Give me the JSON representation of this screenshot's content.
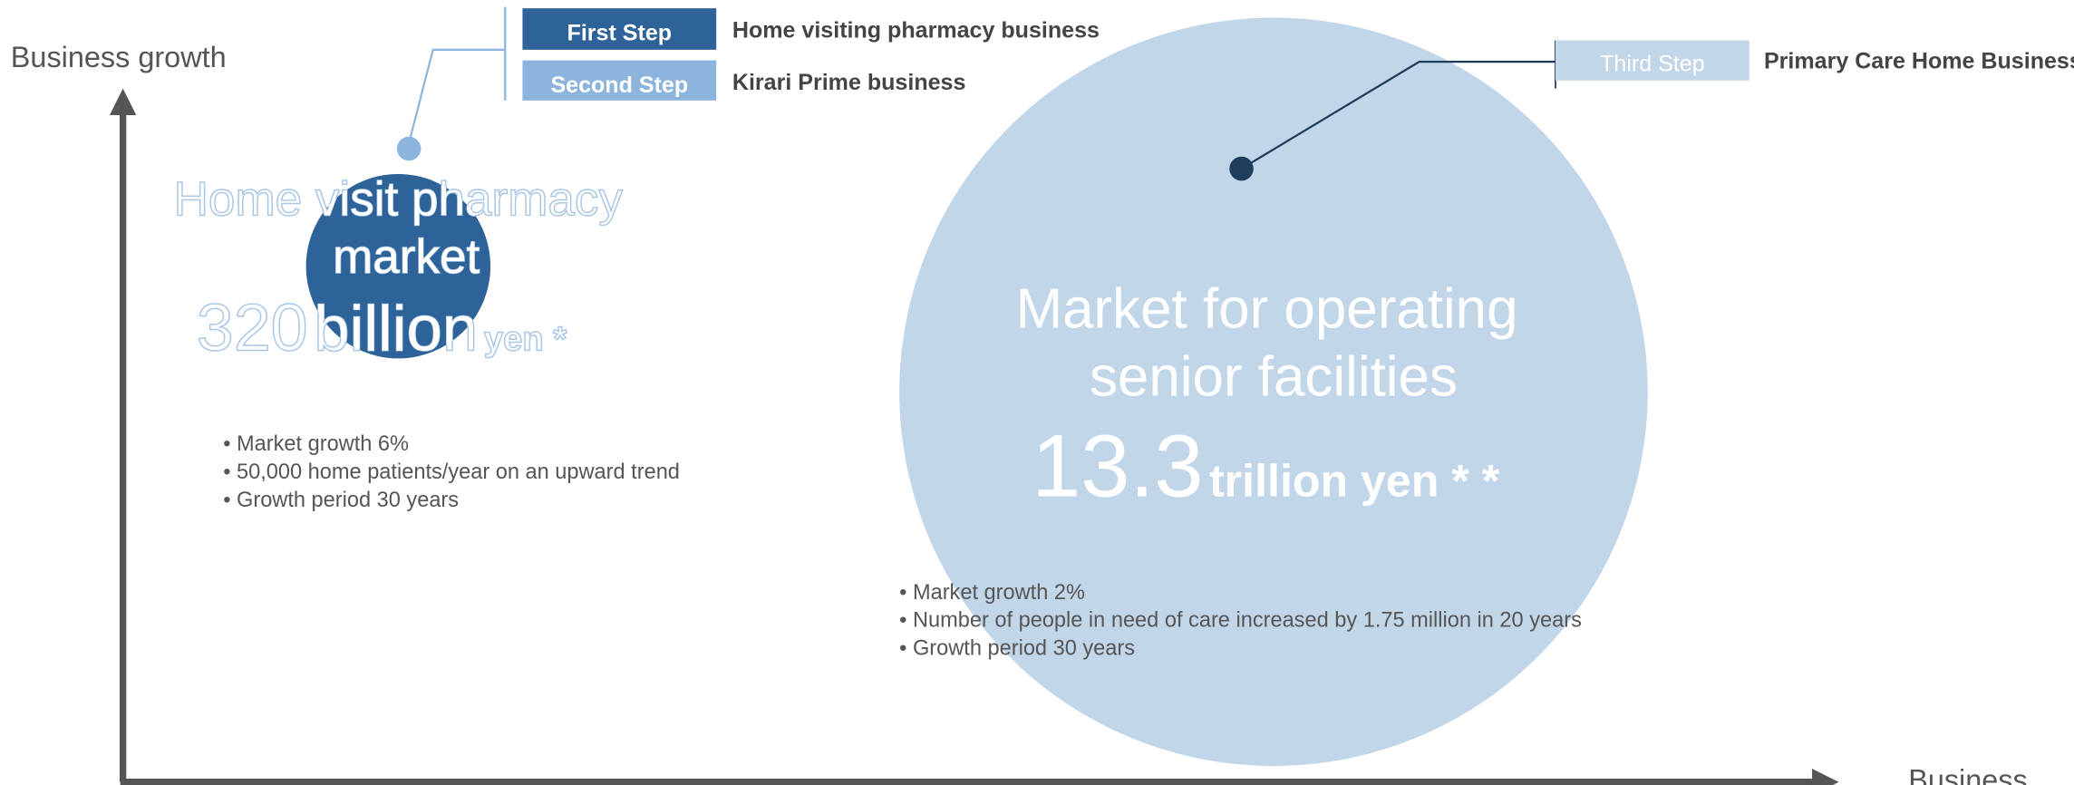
{
  "axes": {
    "y_label": "Business growth",
    "x_label": "Business"
  },
  "steps": [
    {
      "label": "First Step",
      "description": "Home visiting pharmacy business"
    },
    {
      "label": "Second Step",
      "description": "Kirari Prime business"
    },
    {
      "label": "Third Step",
      "description": "Primary Care Home Business"
    }
  ],
  "markets": [
    {
      "title_lines": [
        "Home visit pharmacy",
        "market"
      ],
      "amount": "320",
      "unit": "billion",
      "suffix": "yen *",
      "bullets": [
        "Market growth 6%",
        "50,000 home patients/year on an upward trend",
        "Growth period 30 years"
      ]
    },
    {
      "title_lines": [
        "Market for operating",
        "senior facilities"
      ],
      "amount": "13.3",
      "unit": "trillion yen * *",
      "bullets": [
        "Market growth 2%",
        "Number of people in need of care increased by 1.75 million in 20 years",
        "Growth period 30 years"
      ]
    }
  ]
}
